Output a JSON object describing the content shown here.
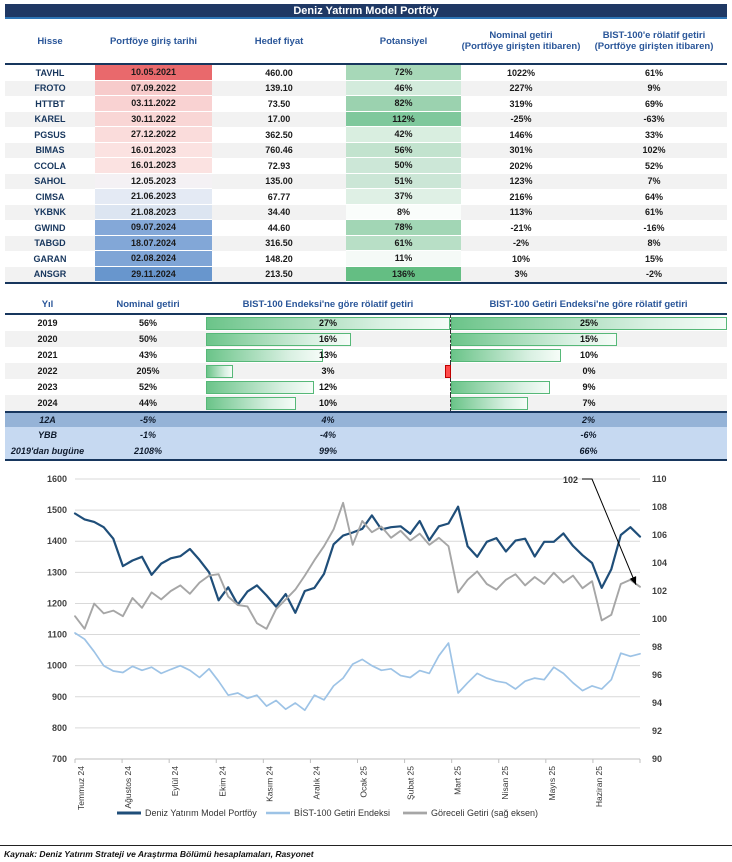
{
  "title": "Deniz Yatırım Model Portföy",
  "portfolio_table": {
    "headers": [
      {
        "line1": "Hisse",
        "line2": ""
      },
      {
        "line1": "Portföye giriş tarihi",
        "line2": ""
      },
      {
        "line1": "Hedef fiyat",
        "line2": ""
      },
      {
        "line1": "Potansiyel",
        "line2": ""
      },
      {
        "line1": "Nominal getiri",
        "line2": "(Portföye girişten itibaren)"
      },
      {
        "line1": "BIST-100'e rölatif getiri",
        "line2": "(Portföye girişten itibaren)"
      }
    ],
    "rows": [
      {
        "hisse": "TAVHL",
        "tarih": "10.05.2021",
        "tarih_bg": "#E9696C",
        "hedef": "460.00",
        "potansiyel": "72%",
        "pot_bg": "#A7D8B8",
        "nominal": "1022%",
        "rolatif": "61%"
      },
      {
        "hisse": "FROTO",
        "tarih": "07.09.2022",
        "tarih_bg": "#F7CBCB",
        "hedef": "139.10",
        "potansiyel": "46%",
        "pot_bg": "#D3EBDC",
        "nominal": "227%",
        "rolatif": "9%"
      },
      {
        "hisse": "HTTBT",
        "tarih": "03.11.2022",
        "tarih_bg": "#F9D2D2",
        "hedef": "73.50",
        "potansiyel": "82%",
        "pot_bg": "#9BD2AF",
        "nominal": "319%",
        "rolatif": "69%"
      },
      {
        "hisse": "KAREL",
        "tarih": "30.11.2022",
        "tarih_bg": "#F9D6D5",
        "hedef": "17.00",
        "potansiyel": "112%",
        "pot_bg": "#7FC89C",
        "nominal": "-25%",
        "rolatif": "-63%"
      },
      {
        "hisse": "PGSUS",
        "tarih": "27.12.2022",
        "tarih_bg": "#FADCDB",
        "hedef": "362.50",
        "potansiyel": "42%",
        "pot_bg": "#D9EEE0",
        "nominal": "146%",
        "rolatif": "33%"
      },
      {
        "hisse": "BIMAS",
        "tarih": "16.01.2023",
        "tarih_bg": "#FBE2E1",
        "hedef": "760.46",
        "potansiyel": "56%",
        "pot_bg": "#C2E3CE",
        "nominal": "301%",
        "rolatif": "102%"
      },
      {
        "hisse": "CCOLA",
        "tarih": "16.01.2023",
        "tarih_bg": "#FBE2E1",
        "hedef": "72.93",
        "potansiyel": "50%",
        "pot_bg": "#CCE7D7",
        "nominal": "202%",
        "rolatif": "52%"
      },
      {
        "hisse": "SAHOL",
        "tarih": "12.05.2023",
        "tarih_bg": "#F4F1F4",
        "hedef": "135.00",
        "potansiyel": "51%",
        "pot_bg": "#CBE6D6",
        "nominal": "123%",
        "rolatif": "7%"
      },
      {
        "hisse": "CIMSA",
        "tarih": "21.06.2023",
        "tarih_bg": "#E4EAF4",
        "hedef": "67.77",
        "potansiyel": "37%",
        "pot_bg": "#DFF0E5",
        "nominal": "216%",
        "rolatif": "64%"
      },
      {
        "hisse": "YKBNK",
        "tarih": "21.08.2023",
        "tarih_bg": "#DCE5F1",
        "hedef": "34.40",
        "potansiyel": "8%",
        "pot_bg": "#FAFDFB",
        "nominal": "113%",
        "rolatif": "61%"
      },
      {
        "hisse": "GWIND",
        "tarih": "09.07.2024",
        "tarih_bg": "#84A8D8",
        "hedef": "44.60",
        "potansiyel": "78%",
        "pot_bg": "#A2D6B5",
        "nominal": "-21%",
        "rolatif": "-16%"
      },
      {
        "hisse": "TABGD",
        "tarih": "18.07.2024",
        "tarih_bg": "#82A7D7",
        "hedef": "316.50",
        "potansiyel": "61%",
        "pot_bg": "#B8DFC6",
        "nominal": "-2%",
        "rolatif": "8%"
      },
      {
        "hisse": "GARAN",
        "tarih": "02.08.2024",
        "tarih_bg": "#7FA5D6",
        "hedef": "148.20",
        "potansiyel": "11%",
        "pot_bg": "#F5FAF7",
        "nominal": "10%",
        "rolatif": "15%"
      },
      {
        "hisse": "ANSGR",
        "tarih": "29.11.2024",
        "tarih_bg": "#6896CD",
        "hedef": "213.50",
        "potansiyel": "136%",
        "pot_bg": "#64BE83",
        "nominal": "3%",
        "rolatif": "-2%"
      }
    ]
  },
  "performance_table": {
    "headers": [
      "Yıl",
      "Nominal getiri",
      "BIST-100 Endeksi'ne göre rölatif getiri",
      "BIST-100 Getiri Endeksi'ne göre rölatif getiri"
    ],
    "bar_max1": 27,
    "bar_max2": 25,
    "rows": [
      {
        "yil": "2019",
        "nominal": "56%",
        "rel1": "27%",
        "rel1_val": 27,
        "rel2": "25%",
        "rel2_val": 25
      },
      {
        "yil": "2020",
        "nominal": "50%",
        "rel1": "16%",
        "rel1_val": 16,
        "rel2": "15%",
        "rel2_val": 15
      },
      {
        "yil": "2021",
        "nominal": "43%",
        "rel1": "13%",
        "rel1_val": 13,
        "rel2": "10%",
        "rel2_val": 10
      },
      {
        "yil": "2022",
        "nominal": "205%",
        "rel1": "3%",
        "rel1_val": 3,
        "rel2": "0%",
        "rel2_val": -0.5
      },
      {
        "yil": "2023",
        "nominal": "52%",
        "rel1": "12%",
        "rel1_val": 12,
        "rel2": "9%",
        "rel2_val": 9
      },
      {
        "yil": "2024",
        "nominal": "44%",
        "rel1": "10%",
        "rel1_val": 10,
        "rel2": "7%",
        "rel2_val": 7
      }
    ],
    "summary_rows": [
      {
        "yil": "12A",
        "nominal": "-5%",
        "rel1": "4%",
        "rel2": "2%",
        "bg": "#95B3D7"
      },
      {
        "yil": "YBB",
        "nominal": "-1%",
        "rel1": "-4%",
        "rel2": "-6%",
        "bg": "#C6D9F1"
      },
      {
        "yil": "2019'dan bugüne",
        "nominal": "2108%",
        "rel1": "99%",
        "rel2": "66%",
        "bg": "#C6D9F1"
      }
    ]
  },
  "chart_data": {
    "type": "line",
    "x_labels": [
      "Temmuz 24",
      "Ağustos 24",
      "Eylül 24",
      "Ekim 24",
      "Kasım 24",
      "Aralık 24",
      "Ocak 25",
      "Şubat 25",
      "Mart 25",
      "Nisan 25",
      "Mayıs 25",
      "Haziran 25"
    ],
    "left_axis": {
      "min": 700,
      "max": 1600,
      "step": 100
    },
    "right_axis": {
      "min": 90,
      "max": 110,
      "step": 2
    },
    "grid": true,
    "legend_position": "bottom",
    "annotation": {
      "text": "102",
      "series": "Göreceli Getiri (sağ eksen)",
      "at": "last-point"
    },
    "colors": {
      "grid": "#D9D9D9",
      "axis": "#BFBFBF",
      "labels": "#404040"
    },
    "series": [
      {
        "name": "Deniz Yatırım Model Portföy",
        "axis": "left",
        "color": "#1F4E79",
        "width": 2.2,
        "values": [
          1489,
          1470,
          1462,
          1445,
          1408,
          1320,
          1338,
          1350,
          1292,
          1328,
          1345,
          1352,
          1375,
          1340,
          1300,
          1210,
          1252,
          1196,
          1238,
          1258,
          1226,
          1190,
          1230,
          1170,
          1240,
          1250,
          1295,
          1390,
          1418,
          1428,
          1440,
          1483,
          1438,
          1445,
          1448,
          1424,
          1465,
          1403,
          1448,
          1457,
          1511,
          1384,
          1350,
          1398,
          1410,
          1367,
          1402,
          1408,
          1351,
          1398,
          1398,
          1425,
          1385,
          1355,
          1330,
          1250,
          1310,
          1420,
          1445,
          1415
        ]
      },
      {
        "name": "BİST-100 Getiri Endeksi",
        "axis": "left",
        "color": "#9DC3E6",
        "width": 1.7,
        "values": [
          1105,
          1085,
          1045,
          1000,
          983,
          978,
          998,
          985,
          995,
          975,
          988,
          1000,
          985,
          962,
          990,
          950,
          905,
          912,
          895,
          905,
          870,
          888,
          860,
          880,
          857,
          905,
          890,
          935,
          960,
          1005,
          1020,
          1000,
          985,
          990,
          968,
          962,
          984,
          975,
          1032,
          1073,
          912,
          945,
          975,
          960,
          950,
          945,
          925,
          950,
          960,
          955,
          995,
          975,
          945,
          920,
          935,
          925,
          955,
          1040,
          1030,
          1038
        ]
      },
      {
        "name": "Göreceli Getiri (sağ eksen)",
        "axis": "right",
        "color": "#A6A6A6",
        "width": 1.9,
        "values": [
          100.2,
          99.3,
          101.1,
          100.4,
          100.6,
          100.2,
          101.5,
          100.8,
          101.9,
          101.4,
          102.0,
          102.4,
          101.8,
          102.6,
          103.1,
          103.2,
          101.6,
          101.0,
          100.9,
          99.7,
          99.3,
          100.7,
          101.4,
          102.1,
          103.1,
          104.2,
          105.2,
          106.4,
          108.3,
          105.3,
          107.0,
          106.2,
          106.6,
          105.8,
          106.3,
          105.6,
          106.1,
          105.3,
          105.8,
          105.2,
          101.9,
          102.8,
          103.4,
          102.5,
          102.1,
          102.8,
          103.2,
          102.4,
          103.0,
          102.5,
          103.3,
          102.6,
          103.1,
          102.2,
          102.7,
          99.9,
          100.3,
          102.5,
          102.8,
          102.3
        ]
      }
    ]
  },
  "footer": "Kaynak: Deniz Yatırım Strateji ve Araştırma Bölümü hesaplamaları, Rasyonet"
}
